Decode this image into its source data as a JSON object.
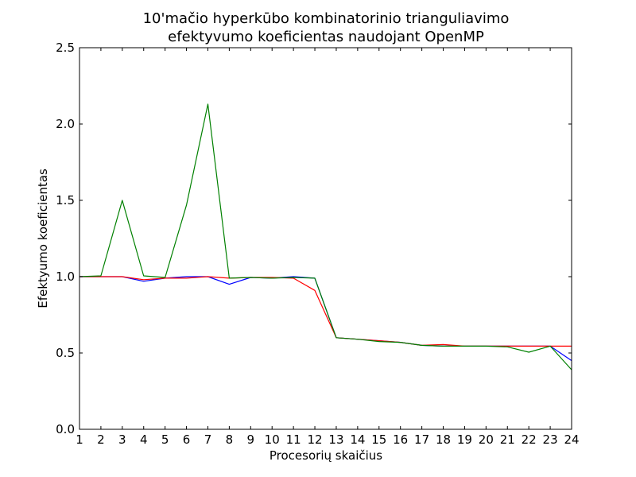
{
  "chart_data": {
    "type": "line",
    "title_line1": "10'mačio hyperkūbo kombinatorinio trianguliavimo",
    "title_line2": "efektyvumo koeficientas naudojant OpenMP",
    "xlabel": "Procesorių skaičius",
    "ylabel": "Efektyumo koeficientas",
    "xlim": [
      1,
      24
    ],
    "ylim": [
      0.0,
      2.5
    ],
    "x": [
      1,
      2,
      3,
      4,
      5,
      6,
      7,
      8,
      9,
      10,
      11,
      12,
      13,
      14,
      15,
      16,
      17,
      18,
      19,
      20,
      21,
      22,
      23,
      24
    ],
    "x_ticks": [
      "1",
      "2",
      "3",
      "4",
      "5",
      "6",
      "7",
      "8",
      "9",
      "10",
      "11",
      "12",
      "13",
      "14",
      "15",
      "16",
      "17",
      "18",
      "19",
      "20",
      "21",
      "22",
      "23",
      "24"
    ],
    "y_ticks": [
      "0.0",
      "0.5",
      "1.0",
      "1.5",
      "2.0",
      "2.5"
    ],
    "y_tick_values": [
      0.0,
      0.5,
      1.0,
      1.5,
      2.0,
      2.5
    ],
    "grid": false,
    "series": [
      {
        "color": "#0000ff",
        "values": [
          1.0,
          1.0,
          1.0,
          0.97,
          0.99,
          1.0,
          1.0,
          0.95,
          0.995,
          0.99,
          1.0,
          0.99,
          0.6,
          0.59,
          0.58,
          0.57,
          0.55,
          0.545,
          0.545,
          0.545,
          0.545,
          0.545,
          0.545,
          0.45
        ]
      },
      {
        "color": "#ff0000",
        "values": [
          1.0,
          1.0,
          1.0,
          0.98,
          0.99,
          0.99,
          1.0,
          0.99,
          0.995,
          0.995,
          0.99,
          0.91,
          0.6,
          0.59,
          0.58,
          0.57,
          0.55,
          0.555,
          0.545,
          0.545,
          0.545,
          0.545,
          0.545,
          0.545
        ]
      },
      {
        "color": "#008000",
        "values": [
          1.0,
          1.005,
          1.5,
          1.005,
          0.995,
          1.47,
          2.13,
          0.99,
          0.995,
          0.99,
          0.995,
          0.99,
          0.6,
          0.59,
          0.575,
          0.57,
          0.55,
          0.545,
          0.545,
          0.545,
          0.54,
          0.505,
          0.545,
          0.39
        ]
      }
    ]
  }
}
